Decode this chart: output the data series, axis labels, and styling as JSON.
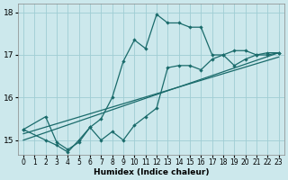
{
  "xlabel": "Humidex (Indice chaleur)",
  "bg_color": "#cce8ec",
  "grid_color": "#9fcdd4",
  "line_color": "#1a6b6b",
  "xlim": [
    -0.5,
    23.5
  ],
  "ylim": [
    14.65,
    18.2
  ],
  "yticks": [
    15,
    16,
    17,
    18
  ],
  "xticks": [
    0,
    1,
    2,
    3,
    4,
    5,
    6,
    7,
    8,
    9,
    10,
    11,
    12,
    13,
    14,
    15,
    16,
    17,
    18,
    19,
    20,
    21,
    22,
    23
  ],
  "line1_x": [
    0,
    2,
    3,
    4,
    5,
    6,
    7,
    8,
    9,
    10,
    11,
    12,
    13,
    14,
    15,
    16,
    17,
    18,
    19,
    20,
    21,
    22,
    23
  ],
  "line1_y": [
    15.25,
    15.55,
    14.95,
    14.78,
    14.95,
    15.3,
    15.5,
    16.0,
    16.85,
    17.35,
    17.15,
    17.95,
    17.75,
    17.75,
    17.65,
    17.65,
    17.0,
    17.0,
    17.1,
    17.1,
    17.0,
    17.05,
    17.05
  ],
  "line2_x": [
    0,
    2,
    3,
    4,
    5,
    6,
    7,
    8,
    9,
    10,
    11,
    12,
    13,
    14,
    15,
    16,
    17,
    18,
    19,
    20,
    21,
    22,
    23
  ],
  "line2_y": [
    15.25,
    15.0,
    14.88,
    14.72,
    15.0,
    15.3,
    15.0,
    15.2,
    15.0,
    15.35,
    15.55,
    15.75,
    16.7,
    16.75,
    16.75,
    16.65,
    16.9,
    17.0,
    16.75,
    16.9,
    17.0,
    17.0,
    17.05
  ],
  "line3_x": [
    0,
    23
  ],
  "line3_y": [
    15.15,
    16.95
  ],
  "line4_x": [
    0,
    23
  ],
  "line4_y": [
    15.0,
    17.05
  ]
}
